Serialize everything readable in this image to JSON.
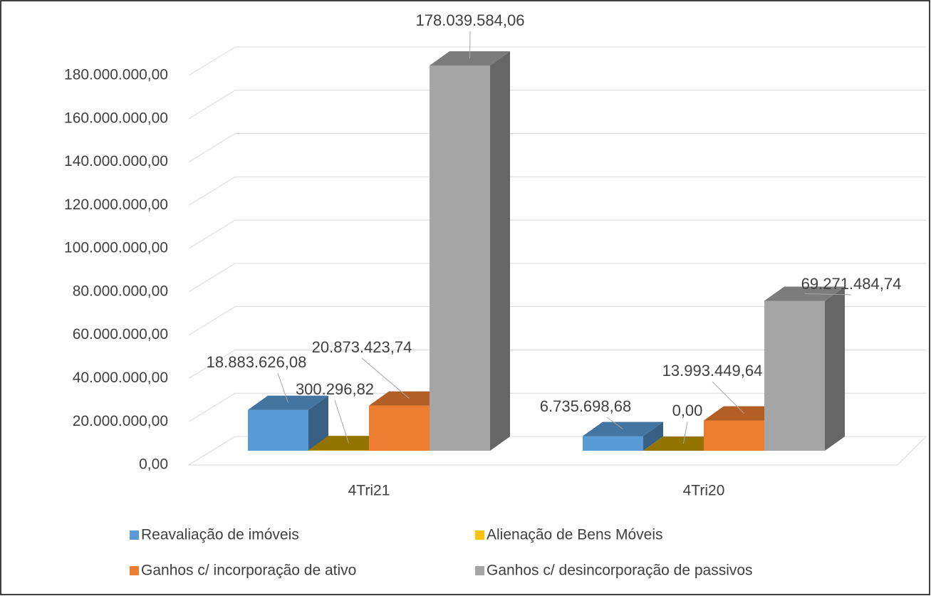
{
  "chart_data": {
    "type": "bar3d",
    "categories": [
      "4Tri21",
      "4Tri20"
    ],
    "series": [
      {
        "name": "Reavaliação de imóveis",
        "color": "#5b9bd5",
        "values": [
          18883626.08,
          6735698.68
        ],
        "value_labels": [
          "18.883.626,08",
          "6.735.698,68"
        ]
      },
      {
        "name": "Alienação de Bens Móveis",
        "color": "#ffc000",
        "values": [
          300296.82,
          0
        ],
        "value_labels": [
          "300.296,82",
          "0,00"
        ]
      },
      {
        "name": "Ganhos c/ incorporação de ativo",
        "color": "#ed7d31",
        "values": [
          20873423.74,
          13993449.64
        ],
        "value_labels": [
          "20.873.423,74",
          "13.993.449,64"
        ]
      },
      {
        "name": "Ganhos c/ desincorporação de passivos",
        "color": "#a5a5a5",
        "values": [
          178039584.06,
          69271484.74
        ],
        "value_labels": [
          "178.039.584,06",
          "69.271.484,74"
        ]
      }
    ],
    "ylim": [
      0,
      180000000
    ],
    "yticks": [
      {
        "value": 0,
        "label": "0,00"
      },
      {
        "value": 20000000,
        "label": "20.000.000,00"
      },
      {
        "value": 40000000,
        "label": "40.000.000,00"
      },
      {
        "value": 60000000,
        "label": "60.000.000,00"
      },
      {
        "value": 80000000,
        "label": "80.000.000,00"
      },
      {
        "value": 100000000,
        "label": "100.000.000,00"
      },
      {
        "value": 120000000,
        "label": "120.000.000,00"
      },
      {
        "value": 140000000,
        "label": "140.000.000,00"
      },
      {
        "value": 160000000,
        "label": "160.000.000,00"
      },
      {
        "value": 180000000,
        "label": "180.000.000,00"
      }
    ],
    "grid": true,
    "legend": "bottom"
  }
}
